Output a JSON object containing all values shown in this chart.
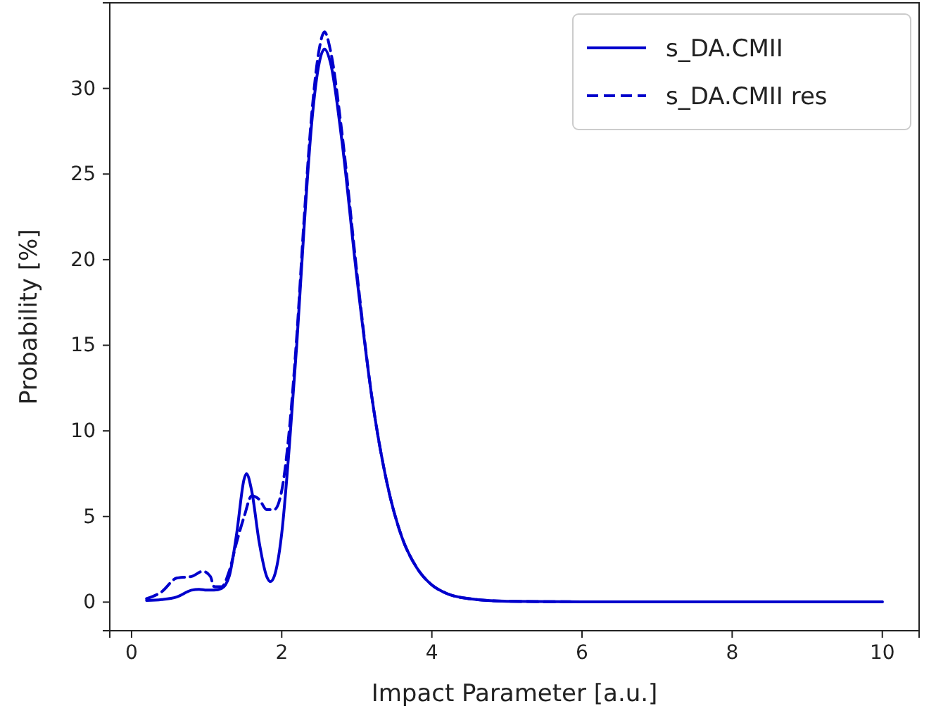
{
  "chart_data": {
    "type": "line",
    "xlabel": "Impact Parameter [a.u.]",
    "ylabel": "Probability [%]",
    "xlim": [
      -0.29,
      10.49
    ],
    "ylim": [
      -1.67,
      35.0
    ],
    "xticks": [
      0,
      2,
      4,
      6,
      8,
      10
    ],
    "yticks": [
      0,
      5,
      10,
      15,
      20,
      25,
      30
    ],
    "grid": false,
    "legend": "top right",
    "marker": "none",
    "series": [
      {
        "name": "s_DA.CMII",
        "color": "#0000cc",
        "line_style": "solid",
        "x": [
          0.2,
          0.4,
          0.6,
          0.8,
          0.9,
          1.0,
          1.1,
          1.2,
          1.3,
          1.4,
          1.5,
          1.53,
          1.6,
          1.7,
          1.8,
          1.85,
          1.9,
          2.0,
          2.1,
          2.2,
          2.3,
          2.4,
          2.5,
          2.57,
          2.65,
          2.8,
          3.0,
          3.2,
          3.4,
          3.6,
          3.8,
          4.0,
          4.2,
          4.5,
          5,
          6,
          8,
          10
        ],
        "values": [
          0.1,
          0.15,
          0.3,
          0.7,
          0.75,
          0.7,
          0.7,
          0.8,
          1.5,
          4,
          7.2,
          7.5,
          6.5,
          3.5,
          1.5,
          1.2,
          1.5,
          4,
          9,
          15,
          22,
          28,
          31.5,
          32.3,
          31.5,
          27,
          19,
          12,
          7,
          3.8,
          2,
          1,
          0.5,
          0.2,
          0.05,
          0.02,
          0.02,
          0.02
        ]
      },
      {
        "name": "s_DA.CMII res",
        "color": "#0000cc",
        "line_style": "dashed",
        "x": [
          0.2,
          0.4,
          0.6,
          0.8,
          0.95,
          1.05,
          1.1,
          1.2,
          1.3,
          1.4,
          1.5,
          1.6,
          1.7,
          1.8,
          1.9,
          2.0,
          2.1,
          2.2,
          2.3,
          2.4,
          2.5,
          2.57,
          2.65,
          2.8,
          3.0,
          3.2,
          3.4,
          3.6,
          3.8,
          4.0,
          4.2,
          4.5,
          5,
          6,
          8,
          10
        ],
        "values": [
          0.2,
          0.6,
          1.4,
          1.5,
          1.8,
          1.5,
          0.9,
          0.9,
          1.8,
          3.5,
          5,
          6.2,
          6,
          5.4,
          5.4,
          6.5,
          10,
          15.5,
          22.5,
          28.5,
          32.3,
          33.3,
          32.2,
          27.5,
          19.3,
          12,
          7,
          3.8,
          2,
          1,
          0.5,
          0.2,
          0.05,
          0.02,
          0.02,
          0.02
        ]
      }
    ]
  }
}
